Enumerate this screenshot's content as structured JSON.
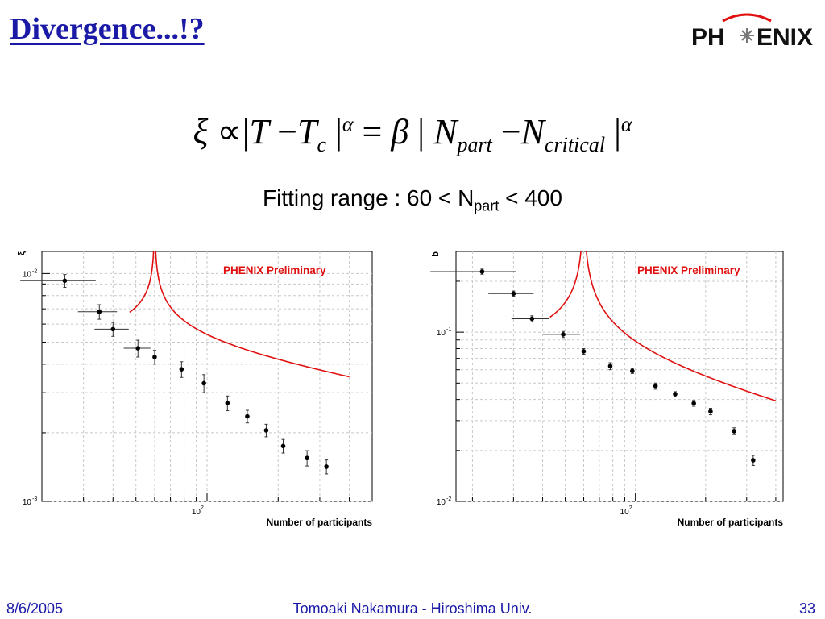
{
  "slide": {
    "title": "Divergence...!?",
    "logo_text": [
      "PH",
      "ENIX"
    ],
    "formula": {
      "xi": "ξ",
      "prop": "∝",
      "bar": "|",
      "T": "T",
      "minus": "−",
      "Tc": "T",
      "c_sub": "c",
      "alpha": "α",
      "eq": "=",
      "beta": "β",
      "N": "N",
      "part_sub": "part",
      "critical_sub": "critical"
    },
    "fitting": {
      "text": "Fitting range : 60 < N",
      "sub": "part",
      "tail": " < 400"
    },
    "footer": {
      "date": "8/6/2005",
      "author": "Tomoaki Nakamura - Hiroshima Univ.",
      "page": "33"
    }
  },
  "colors": {
    "title": "#1a1aa6",
    "fit": "#e01010",
    "preliminary": "#e01010",
    "grid": "#c8c8c8"
  },
  "chart_data": [
    {
      "type": "scatter",
      "title": "",
      "preliminary_label": "PHENIX Preliminary",
      "xlabel": "Number of participants",
      "ylabel": "ξ",
      "xscale": "log",
      "yscale": "log",
      "xlim": [
        20,
        500
      ],
      "ylim": [
        0.001,
        0.0125
      ],
      "grid": true,
      "xtick_labels": [
        {
          "v": 100,
          "base": "10",
          "exp": "2"
        }
      ],
      "ytick_labels": [
        {
          "v": 0.01,
          "base": "10",
          "exp": "-2"
        },
        {
          "v": 0.001,
          "base": "10",
          "exp": "-3"
        }
      ],
      "series": [
        {
          "x": [
            25,
            35,
            40,
            51,
            60,
            78,
            97,
            122,
            148,
            178,
            210,
            265,
            320
          ],
          "xerr": [
            4,
            3,
            3,
            3,
            0,
            0,
            0,
            0,
            0,
            0,
            0,
            0,
            0
          ],
          "y": [
            0.0093,
            0.0068,
            0.0057,
            0.0047,
            0.0043,
            0.0038,
            0.0033,
            0.0027,
            0.00236,
            0.00205,
            0.00175,
            0.00155,
            0.00142
          ],
          "yerr": [
            0.0006,
            0.0005,
            0.0004,
            0.0004,
            0.0003,
            0.0003,
            0.0003,
            0.0002,
            0.00015,
            0.00013,
            0.00012,
            0.00012,
            0.0001
          ]
        }
      ],
      "fit": {
        "name": "",
        "xc": 60,
        "a": 0.0113,
        "p": 0.2,
        "xmin": 47,
        "xmax": 400
      }
    },
    {
      "type": "scatter",
      "title": "",
      "preliminary_label": "PHENIX Preliminary",
      "xlabel": "Number of participants",
      "ylabel": "b",
      "xscale": "log",
      "yscale": "log",
      "xlim": [
        17,
        430
      ],
      "ylim": [
        0.01,
        0.3
      ],
      "grid": true,
      "xtick_labels": [
        {
          "v": 100,
          "base": "10",
          "exp": "2"
        }
      ],
      "ytick_labels": [
        {
          "v": 0.1,
          "base": "10",
          "exp": "-1"
        },
        {
          "v": 0.01,
          "base": "10",
          "exp": "-2"
        }
      ],
      "series": [
        {
          "x": [
            22,
            30,
            36,
            49,
            60,
            78,
            97,
            122,
            148,
            178,
            210,
            265,
            320
          ],
          "xerr": [
            4,
            3,
            3,
            4,
            0,
            0,
            0,
            0,
            0,
            0,
            0,
            0,
            0
          ],
          "y": [
            0.228,
            0.169,
            0.12,
            0.097,
            0.077,
            0.063,
            0.059,
            0.048,
            0.043,
            0.038,
            0.034,
            0.026,
            0.0175
          ],
          "yerr": [
            0.008,
            0.006,
            0.005,
            0.004,
            0.003,
            0.003,
            0.002,
            0.002,
            0.0015,
            0.0015,
            0.0015,
            0.0012,
            0.0012
          ]
        }
      ],
      "fit": {
        "name": "",
        "xc": 60,
        "a": 0.36,
        "p": 0.38,
        "xmin": 43,
        "xmax": 400
      }
    }
  ]
}
